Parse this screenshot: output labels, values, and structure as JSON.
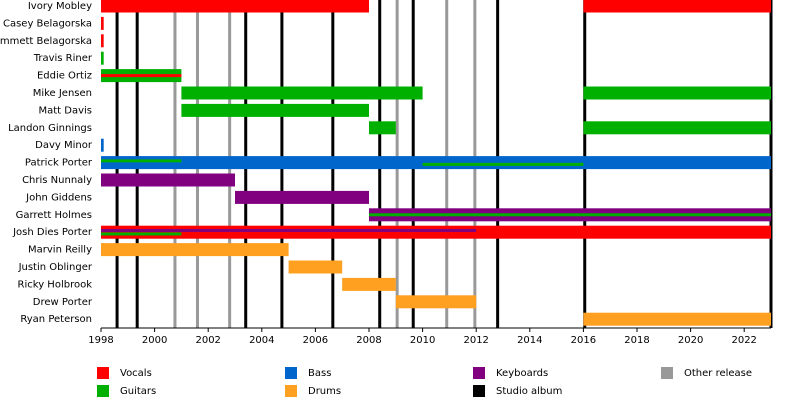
{
  "chart_data": {
    "type": "timeline",
    "xlim": [
      1998,
      2023
    ],
    "xticks": [
      1998,
      2000,
      2002,
      2004,
      2006,
      2008,
      2010,
      2012,
      2014,
      2016,
      2018,
      2020,
      2022
    ],
    "roles": [
      {
        "name": "Vocals",
        "color": "#ff0000"
      },
      {
        "name": "Guitars",
        "color": "#00b000"
      },
      {
        "name": "Bass",
        "color": "#0066cc"
      },
      {
        "name": "Drums",
        "color": "#ffa020"
      },
      {
        "name": "Keyboards",
        "color": "#800080"
      }
    ],
    "events": [
      {
        "name": "Studio album",
        "color": "#000000",
        "x": [
          1998.6,
          1999.35,
          2003.4,
          2004.75,
          2006.65,
          2008.4,
          2009.65,
          2012.8,
          2016.05,
          2023
        ]
      },
      {
        "name": "Other release",
        "color": "#999999",
        "x": [
          2000.76,
          2001.6,
          2002.8,
          2009.05,
          2010.9,
          2011.95
        ]
      }
    ],
    "rows": [
      {
        "name": "Ivory Mobley",
        "bars": [
          {
            "start": 1998,
            "end": 2008,
            "role": "Vocals"
          },
          {
            "start": 2016,
            "end": 2023,
            "role": "Vocals"
          }
        ],
        "stripes": []
      },
      {
        "name": "Casey Belagorska",
        "bars": [
          {
            "start": 1998,
            "end": 1998.1,
            "role": "Vocals"
          }
        ],
        "stripes": []
      },
      {
        "name": "Emmett Belagorska",
        "bars": [
          {
            "start": 1998,
            "end": 1998.1,
            "role": "Vocals"
          }
        ],
        "stripes": []
      },
      {
        "name": "Travis Riner",
        "bars": [
          {
            "start": 1998,
            "end": 1998.1,
            "role": "Guitars"
          }
        ],
        "stripes": []
      },
      {
        "name": "Eddie Ortiz",
        "bars": [
          {
            "start": 1998,
            "end": 2001,
            "role": "Guitars"
          }
        ],
        "stripes": [
          {
            "start": 1998,
            "end": 2001,
            "role": "Vocals"
          }
        ]
      },
      {
        "name": "Mike Jensen",
        "bars": [
          {
            "start": 2001,
            "end": 2010,
            "role": "Guitars"
          },
          {
            "start": 2016,
            "end": 2023,
            "role": "Guitars"
          }
        ],
        "stripes": []
      },
      {
        "name": "Matt Davis",
        "bars": [
          {
            "start": 2001,
            "end": 2008,
            "role": "Guitars"
          }
        ],
        "stripes": []
      },
      {
        "name": "Landon Ginnings",
        "bars": [
          {
            "start": 2008,
            "end": 2009,
            "role": "Guitars"
          },
          {
            "start": 2016,
            "end": 2023,
            "role": "Guitars"
          }
        ],
        "stripes": []
      },
      {
        "name": "Davy Minor",
        "bars": [
          {
            "start": 1998,
            "end": 1998.1,
            "role": "Bass"
          }
        ],
        "stripes": []
      },
      {
        "name": "Patrick Porter",
        "bars": [
          {
            "start": 1998,
            "end": 2023,
            "role": "Bass"
          }
        ],
        "stripes": [
          {
            "start": 1998,
            "end": 2001,
            "role": "Guitars"
          },
          {
            "start": 2010,
            "end": 2016,
            "role": "Guitars"
          }
        ]
      },
      {
        "name": "Chris Nunnaly",
        "bars": [
          {
            "start": 1998,
            "end": 2003,
            "role": "Keyboards"
          }
        ],
        "stripes": []
      },
      {
        "name": "John Giddens",
        "bars": [
          {
            "start": 2003,
            "end": 2008,
            "role": "Keyboards"
          }
        ],
        "stripes": []
      },
      {
        "name": "Garrett Holmes",
        "bars": [
          {
            "start": 2008,
            "end": 2023,
            "role": "Keyboards"
          }
        ],
        "stripes": [
          {
            "start": 2008,
            "end": 2023,
            "role": "Guitars"
          }
        ]
      },
      {
        "name": "Josh Dies Porter",
        "bars": [
          {
            "start": 1998,
            "end": 2023,
            "role": "Vocals"
          }
        ],
        "stripes": [
          {
            "start": 1998,
            "end": 2012,
            "role": "Keyboards"
          },
          {
            "start": 1998,
            "end": 2001,
            "role": "Guitars"
          }
        ]
      },
      {
        "name": "Marvin Reilly",
        "bars": [
          {
            "start": 1998,
            "end": 2005,
            "role": "Drums"
          }
        ],
        "stripes": []
      },
      {
        "name": "Justin Oblinger",
        "bars": [
          {
            "start": 2005,
            "end": 2007,
            "role": "Drums"
          }
        ],
        "stripes": []
      },
      {
        "name": "Ricky Holbrook",
        "bars": [
          {
            "start": 2007,
            "end": 2009,
            "role": "Drums"
          }
        ],
        "stripes": []
      },
      {
        "name": "Drew Porter",
        "bars": [
          {
            "start": 2009,
            "end": 2012,
            "role": "Drums"
          }
        ],
        "stripes": []
      },
      {
        "name": "Ryan Peterson",
        "bars": [
          {
            "start": 2016,
            "end": 2023,
            "role": "Drums"
          }
        ],
        "stripes": []
      }
    ]
  }
}
